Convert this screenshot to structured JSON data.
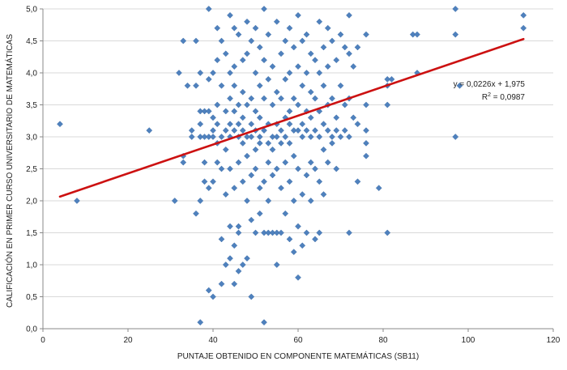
{
  "chart_data": {
    "type": "scatter",
    "title": "",
    "xlabel": "PUNTAJE OBTENIDO EN COMPONENTE MATEMÁTICAS (SB11)",
    "ylabel": "CALIFICACIÓN EN PRIMER CURSO UNIVERSITARIO DE MATEMÁTICAS",
    "xlim": [
      0,
      120
    ],
    "ylim": [
      0,
      5
    ],
    "x_ticks": [
      "0",
      "20",
      "40",
      "60",
      "80",
      "100",
      "120"
    ],
    "y_ticks": [
      "0,0",
      "0,5",
      "1,0",
      "1,5",
      "2,0",
      "2,5",
      "3,0",
      "3,5",
      "4,0",
      "4,5",
      "5,0"
    ],
    "grid": "horizontal",
    "colors": {
      "marker": "#4f81bd",
      "trendline": "#cc1111",
      "grid": "#d9d9d9",
      "axis": "#888888"
    },
    "trendline": {
      "equation": "y = 0,0226x + 1,975",
      "r2_prefix": "R",
      "r2_exp": "2",
      "r2_value": " = 0,0987",
      "slope": 0.0226,
      "intercept": 1.975,
      "x_range": [
        4,
        113
      ]
    },
    "points": [
      [
        4,
        3.2
      ],
      [
        8,
        2.0
      ],
      [
        25,
        3.1
      ],
      [
        31,
        2.0
      ],
      [
        32,
        4.0
      ],
      [
        33,
        4.5
      ],
      [
        33,
        2.7
      ],
      [
        33,
        2.6
      ],
      [
        34,
        3.8
      ],
      [
        35,
        3.1
      ],
      [
        35,
        3.0
      ],
      [
        36,
        3.8
      ],
      [
        36,
        4.5
      ],
      [
        36,
        1.8
      ],
      [
        37,
        3.4
      ],
      [
        37,
        3.2
      ],
      [
        37,
        3.0
      ],
      [
        37,
        2.0
      ],
      [
        37,
        0.1
      ],
      [
        37,
        4.0
      ],
      [
        38,
        2.6
      ],
      [
        38,
        3.0
      ],
      [
        38,
        2.3
      ],
      [
        38,
        3.4
      ],
      [
        39,
        5.0
      ],
      [
        39,
        3.9
      ],
      [
        39,
        3.4
      ],
      [
        39,
        3.0
      ],
      [
        39,
        2.2
      ],
      [
        39,
        0.6
      ],
      [
        40,
        3.3
      ],
      [
        40,
        3.1
      ],
      [
        40,
        3.0
      ],
      [
        40,
        2.3
      ],
      [
        40,
        4.0
      ],
      [
        40,
        0.5
      ],
      [
        41,
        4.7
      ],
      [
        41,
        3.5
      ],
      [
        41,
        3.2
      ],
      [
        41,
        2.9
      ],
      [
        41,
        2.6
      ],
      [
        41,
        4.2
      ],
      [
        42,
        4.5
      ],
      [
        42,
        3.8
      ],
      [
        42,
        3.0
      ],
      [
        42,
        1.4
      ],
      [
        42,
        0.7
      ],
      [
        42,
        2.5
      ],
      [
        43,
        4.3
      ],
      [
        43,
        3.4
      ],
      [
        43,
        3.1
      ],
      [
        43,
        2.8
      ],
      [
        43,
        2.1
      ],
      [
        43,
        1.0
      ],
      [
        44,
        4.9
      ],
      [
        44,
        4.0
      ],
      [
        44,
        3.6
      ],
      [
        44,
        3.2
      ],
      [
        44,
        3.0
      ],
      [
        44,
        2.5
      ],
      [
        44,
        1.6
      ],
      [
        44,
        1.1
      ],
      [
        45,
        4.7
      ],
      [
        45,
        3.8
      ],
      [
        45,
        3.4
      ],
      [
        45,
        3.1
      ],
      [
        45,
        2.2
      ],
      [
        45,
        1.3
      ],
      [
        45,
        0.7
      ],
      [
        45,
        4.1
      ],
      [
        46,
        4.6
      ],
      [
        46,
        3.5
      ],
      [
        46,
        3.2
      ],
      [
        46,
        3.0
      ],
      [
        46,
        2.6
      ],
      [
        46,
        1.5
      ],
      [
        46,
        1.6
      ],
      [
        46,
        0.9
      ],
      [
        47,
        4.2
      ],
      [
        47,
        3.7
      ],
      [
        47,
        3.3
      ],
      [
        47,
        3.1
      ],
      [
        47,
        2.3
      ],
      [
        47,
        1.0
      ],
      [
        47,
        2.9
      ],
      [
        48,
        4.8
      ],
      [
        48,
        4.3
      ],
      [
        48,
        3.5
      ],
      [
        48,
        3.0
      ],
      [
        48,
        2.0
      ],
      [
        48,
        1.1
      ],
      [
        48,
        2.7
      ],
      [
        49,
        4.5
      ],
      [
        49,
        3.6
      ],
      [
        49,
        3.2
      ],
      [
        49,
        3.0
      ],
      [
        49,
        2.4
      ],
      [
        49,
        1.7
      ],
      [
        49,
        0.5
      ],
      [
        50,
        4.7
      ],
      [
        50,
        4.0
      ],
      [
        50,
        3.4
      ],
      [
        50,
        3.1
      ],
      [
        50,
        2.5
      ],
      [
        50,
        1.5
      ],
      [
        50,
        2.8
      ],
      [
        51,
        4.4
      ],
      [
        51,
        3.8
      ],
      [
        51,
        3.3
      ],
      [
        51,
        3.0
      ],
      [
        51,
        2.2
      ],
      [
        51,
        1.8
      ],
      [
        51,
        2.9
      ],
      [
        52,
        5.0
      ],
      [
        52,
        4.2
      ],
      [
        52,
        3.6
      ],
      [
        52,
        3.1
      ],
      [
        52,
        2.3
      ],
      [
        52,
        1.5
      ],
      [
        52,
        0.1
      ],
      [
        53,
        4.6
      ],
      [
        53,
        3.9
      ],
      [
        53,
        3.2
      ],
      [
        53,
        2.9
      ],
      [
        53,
        2.0
      ],
      [
        53,
        1.5
      ],
      [
        53,
        2.6
      ],
      [
        54,
        4.1
      ],
      [
        54,
        3.5
      ],
      [
        54,
        3.0
      ],
      [
        54,
        2.4
      ],
      [
        54,
        1.5
      ],
      [
        54,
        2.8
      ],
      [
        55,
        4.8
      ],
      [
        55,
        3.7
      ],
      [
        55,
        3.2
      ],
      [
        55,
        3.0
      ],
      [
        55,
        2.5
      ],
      [
        55,
        1.5
      ],
      [
        55,
        1.0
      ],
      [
        56,
        4.3
      ],
      [
        56,
        3.6
      ],
      [
        56,
        3.1
      ],
      [
        56,
        2.2
      ],
      [
        56,
        1.5
      ],
      [
        56,
        2.9
      ],
      [
        57,
        4.5
      ],
      [
        57,
        3.9
      ],
      [
        57,
        3.3
      ],
      [
        57,
        3.0
      ],
      [
        57,
        2.6
      ],
      [
        57,
        1.8
      ],
      [
        58,
        4.7
      ],
      [
        58,
        4.0
      ],
      [
        58,
        3.4
      ],
      [
        58,
        3.2
      ],
      [
        58,
        2.3
      ],
      [
        58,
        1.4
      ],
      [
        58,
        2.9
      ],
      [
        59,
        4.4
      ],
      [
        59,
        3.6
      ],
      [
        59,
        3.1
      ],
      [
        59,
        2.7
      ],
      [
        59,
        2.0
      ],
      [
        59,
        1.2
      ],
      [
        60,
        4.9
      ],
      [
        60,
        4.1
      ],
      [
        60,
        3.5
      ],
      [
        60,
        3.1
      ],
      [
        60,
        2.5
      ],
      [
        60,
        1.6
      ],
      [
        60,
        0.8
      ],
      [
        61,
        4.5
      ],
      [
        61,
        3.8
      ],
      [
        61,
        3.2
      ],
      [
        61,
        3.0
      ],
      [
        61,
        2.1
      ],
      [
        61,
        1.3
      ],
      [
        62,
        4.6
      ],
      [
        62,
        4.0
      ],
      [
        62,
        3.4
      ],
      [
        62,
        3.1
      ],
      [
        62,
        2.4
      ],
      [
        62,
        1.5
      ],
      [
        63,
        4.3
      ],
      [
        63,
        3.7
      ],
      [
        63,
        3.3
      ],
      [
        63,
        3.0
      ],
      [
        63,
        2.6
      ],
      [
        63,
        2.0
      ],
      [
        64,
        4.2
      ],
      [
        64,
        3.6
      ],
      [
        64,
        3.1
      ],
      [
        64,
        2.5
      ],
      [
        64,
        1.4
      ],
      [
        65,
        4.8
      ],
      [
        65,
        4.0
      ],
      [
        65,
        3.4
      ],
      [
        65,
        3.0
      ],
      [
        65,
        2.3
      ],
      [
        65,
        1.5
      ],
      [
        66,
        4.4
      ],
      [
        66,
        3.8
      ],
      [
        66,
        3.2
      ],
      [
        66,
        2.8
      ],
      [
        66,
        2.1
      ],
      [
        67,
        4.7
      ],
      [
        67,
        4.1
      ],
      [
        67,
        3.5
      ],
      [
        67,
        3.1
      ],
      [
        67,
        2.6
      ],
      [
        68,
        4.5
      ],
      [
        68,
        3.6
      ],
      [
        68,
        3.0
      ],
      [
        68,
        2.9
      ],
      [
        69,
        4.2
      ],
      [
        69,
        3.3
      ],
      [
        69,
        3.1
      ],
      [
        69,
        2.5
      ],
      [
        70,
        4.6
      ],
      [
        70,
        3.8
      ],
      [
        70,
        3.0
      ],
      [
        71,
        4.4
      ],
      [
        71,
        3.5
      ],
      [
        71,
        3.1
      ],
      [
        72,
        4.9
      ],
      [
        72,
        4.3
      ],
      [
        72,
        3.6
      ],
      [
        72,
        3.0
      ],
      [
        72,
        1.5
      ],
      [
        73,
        4.1
      ],
      [
        73,
        3.3
      ],
      [
        74,
        4.4
      ],
      [
        74,
        3.2
      ],
      [
        74,
        2.3
      ],
      [
        76,
        4.6
      ],
      [
        76,
        3.5
      ],
      [
        76,
        3.1
      ],
      [
        76,
        2.7
      ],
      [
        76,
        2.9
      ],
      [
        79,
        2.2
      ],
      [
        81,
        3.8
      ],
      [
        81,
        3.5
      ],
      [
        81,
        3.9
      ],
      [
        81,
        1.5
      ],
      [
        87,
        4.6
      ],
      [
        88,
        4.0
      ],
      [
        97,
        4.6
      ],
      [
        97,
        5.0
      ],
      [
        97,
        3.0
      ],
      [
        98,
        3.8
      ],
      [
        113,
        4.9
      ],
      [
        113,
        4.7
      ],
      [
        82,
        3.9
      ],
      [
        88,
        4.6
      ]
    ]
  }
}
